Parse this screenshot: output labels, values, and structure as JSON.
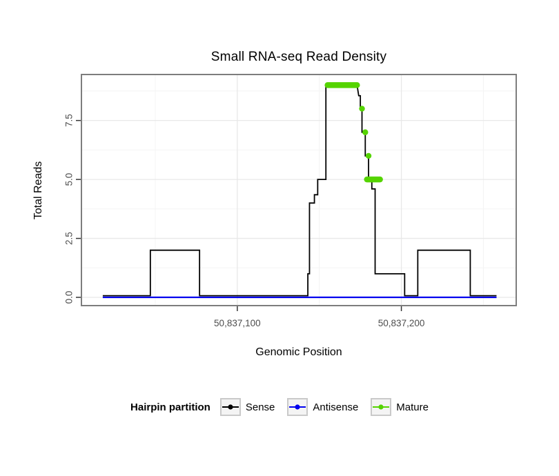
{
  "chart_data": {
    "type": "line",
    "title": "Small RNA-seq Read Density",
    "xlabel": "Genomic Position",
    "ylabel": "Total Reads",
    "xlim": [
      50837005,
      50837270
    ],
    "ylim": [
      -0.35,
      9.45
    ],
    "grid": true,
    "x_axis": {
      "ticks": [
        {
          "value": 50837100,
          "label": "50,837,100"
        },
        {
          "value": 50837200,
          "label": "50,837,200"
        }
      ],
      "minor": [
        50837050,
        50837150,
        50837250
      ]
    },
    "y_axis": {
      "ticks": [
        {
          "value": 0,
          "label": "0.0"
        },
        {
          "value": 2.5,
          "label": "2.5"
        },
        {
          "value": 5,
          "label": "5.0"
        },
        {
          "value": 7.5,
          "label": "7.5"
        }
      ],
      "minor": [
        1.25,
        3.75,
        6.25,
        8.75
      ]
    },
    "series": [
      {
        "name": "Sense",
        "type": "step-line",
        "color": "#000000",
        "width": 1.8,
        "points": [
          [
            50837018,
            0.07
          ],
          [
            50837047,
            0.07
          ],
          [
            50837047,
            2
          ],
          [
            50837077,
            2
          ],
          [
            50837077,
            0.07
          ],
          [
            50837143,
            0.07
          ],
          [
            50837143,
            1
          ],
          [
            50837144,
            1
          ],
          [
            50837144,
            4
          ],
          [
            50837147,
            4
          ],
          [
            50837147,
            4.35
          ],
          [
            50837149,
            4.35
          ],
          [
            50837149,
            5
          ],
          [
            50837154,
            5
          ],
          [
            50837154,
            9
          ],
          [
            50837173,
            9
          ],
          [
            50837174,
            8.55
          ],
          [
            50837175,
            8.55
          ],
          [
            50837175,
            8
          ],
          [
            50837176,
            8
          ],
          [
            50837176,
            7
          ],
          [
            50837178,
            7
          ],
          [
            50837178,
            6
          ],
          [
            50837180,
            6
          ],
          [
            50837180,
            5
          ],
          [
            50837182,
            5
          ],
          [
            50837182,
            4.6
          ],
          [
            50837184,
            4.6
          ],
          [
            50837184,
            1
          ],
          [
            50837202,
            1
          ],
          [
            50837202,
            0.07
          ],
          [
            50837210,
            0.07
          ],
          [
            50837210,
            2
          ],
          [
            50837242,
            2
          ],
          [
            50837242,
            0.07
          ],
          [
            50837258,
            0.07
          ]
        ]
      },
      {
        "name": "Antisense",
        "type": "line",
        "color": "#0000EE",
        "width": 2.2,
        "points": [
          [
            50837018,
            0
          ],
          [
            50837258,
            0
          ]
        ]
      },
      {
        "name": "Mature",
        "type": "markers",
        "color": "#55D400",
        "marker_size": 4.2,
        "segments": [
          [
            50837155,
            9,
            50837173,
            9
          ],
          [
            50837179,
            5,
            50837187,
            5
          ]
        ],
        "points": [
          [
            50837176,
            8
          ],
          [
            50837178,
            7
          ],
          [
            50837180,
            6
          ]
        ]
      }
    ],
    "legend": {
      "title": "Hairpin partition",
      "position": "bottom",
      "items": [
        {
          "label": "Sense",
          "color": "#000000"
        },
        {
          "label": "Antisense",
          "color": "#0000EE"
        },
        {
          "label": "Mature",
          "color": "#55D400"
        }
      ]
    },
    "panel_border_color": "#7d7d7d",
    "grid_major_color": "#e8e8e8",
    "grid_minor_color": "#f4f4f4",
    "tick_label_color": "#4d4d4d"
  }
}
